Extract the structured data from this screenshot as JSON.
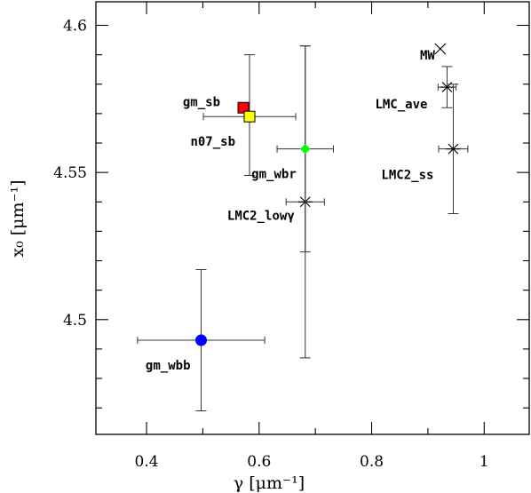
{
  "chart_data": {
    "type": "scatter",
    "title": "",
    "xlabel": "γ  [μm⁻¹]",
    "ylabel": "x₀  [μm⁻¹]",
    "xlim": [
      0.31,
      1.08
    ],
    "ylim": [
      4.461,
      4.608
    ],
    "xticks": [
      0.4,
      0.6,
      0.8,
      1.0
    ],
    "xtick_labels": [
      "0.4",
      "0.6",
      "0.8",
      "1"
    ],
    "yticks": [
      4.5,
      4.55,
      4.6
    ],
    "ytick_labels": [
      "4.5",
      "4.55",
      "4.6"
    ],
    "grid": false,
    "points": [
      {
        "label": "MW",
        "x": 0.922,
        "y": 4.592,
        "marker": "x",
        "color": "#000000"
      },
      {
        "label": "LMC_ave",
        "x": 0.934,
        "y": 4.579,
        "marker": "asterisk",
        "color": "#000000",
        "xerr": [
          0.016,
          0.016
        ],
        "yerr": [
          0.007,
          0.007
        ]
      },
      {
        "label": "LMC2_ss",
        "x": 0.945,
        "y": 4.558,
        "marker": "asterisk",
        "color": "#000000",
        "xerr": [
          0.026,
          0.026
        ],
        "yerr": [
          0.022,
          0.022
        ]
      },
      {
        "label": "LMC2_lowγ",
        "x": 0.682,
        "y": 4.54,
        "marker": "asterisk",
        "color": "#000000",
        "xerr": [
          0.034,
          0.034
        ],
        "yerr": [
          0.053,
          0.053
        ]
      },
      {
        "label": "gm_sb",
        "x": 0.572,
        "y": 4.572,
        "marker": "square",
        "color": "#ff0000"
      },
      {
        "label": "n07_sb",
        "x": 0.583,
        "y": 4.569,
        "marker": "square",
        "color": "#ffff00",
        "xerr": [
          0.082,
          0.082
        ],
        "yerr": [
          0.02,
          0.021
        ]
      },
      {
        "label": "gm_wbr",
        "x": 0.682,
        "y": 4.558,
        "marker": "diamond",
        "color": "#00ff00",
        "xerr": [
          0.05,
          0.05
        ],
        "yerr": [
          0.035,
          0.035
        ]
      },
      {
        "label": "gm_wbb",
        "x": 0.497,
        "y": 4.493,
        "marker": "circle",
        "color": "#0000ff",
        "xerr": [
          0.113,
          0.113
        ],
        "yerr": [
          0.024,
          0.024
        ]
      }
    ]
  }
}
